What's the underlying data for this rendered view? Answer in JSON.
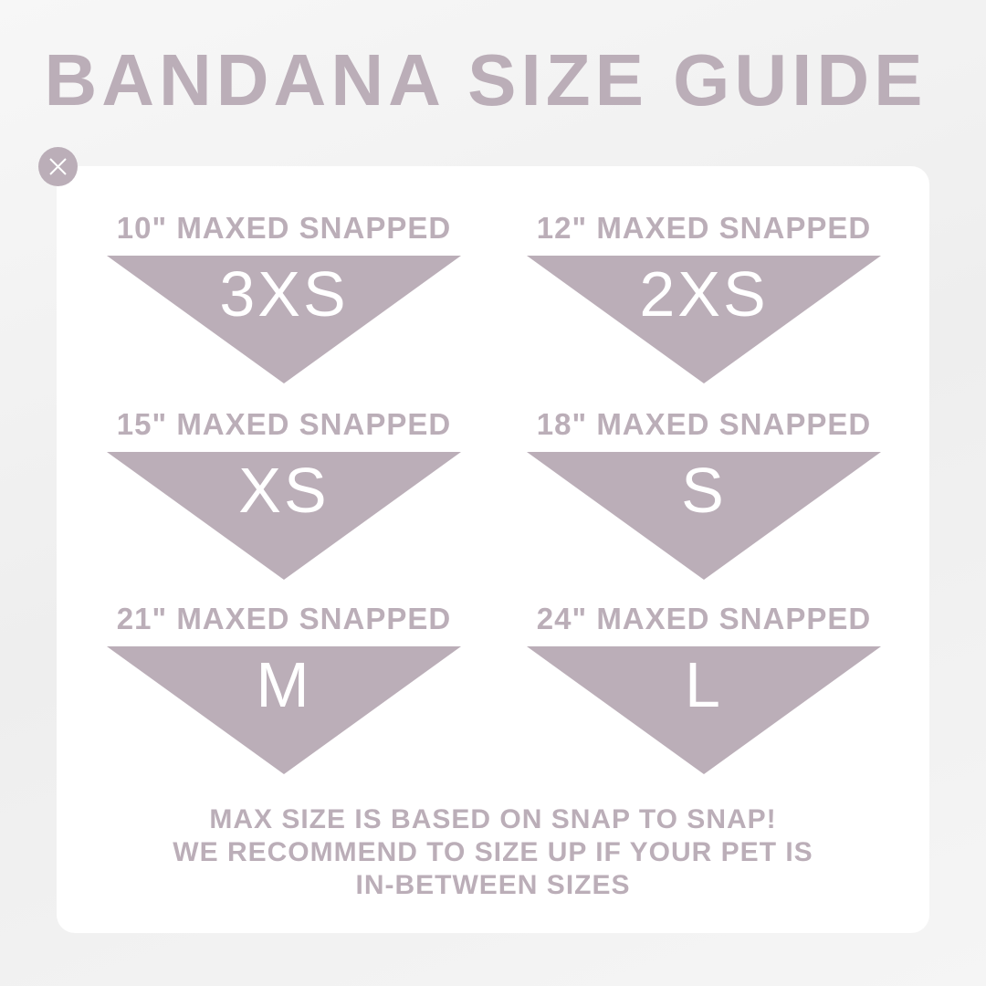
{
  "colors": {
    "accent": "#bbaeb8",
    "background": "#f2f2f2",
    "card": "#ffffff",
    "text_on_accent": "#ffffff"
  },
  "title": "BANDANA SIZE GUIDE",
  "close_icon": "close-x-icon",
  "sizes": [
    {
      "label": "10\" MAXED SNAPPED",
      "size": "3XS"
    },
    {
      "label": "12\" MAXED SNAPPED",
      "size": "2XS"
    },
    {
      "label": "15\" MAXED SNAPPED",
      "size": "XS"
    },
    {
      "label": "18\" MAXED SNAPPED",
      "size": "S"
    },
    {
      "label": "21\" MAXED SNAPPED",
      "size": "M"
    },
    {
      "label": "24\" MAXED SNAPPED",
      "size": "L"
    }
  ],
  "footer": {
    "lines": [
      "MAX SIZE IS BASED ON SNAP TO SNAP!",
      "WE RECOMMEND TO SIZE UP IF YOUR PET IS",
      "IN-BETWEEN SIZES"
    ]
  }
}
